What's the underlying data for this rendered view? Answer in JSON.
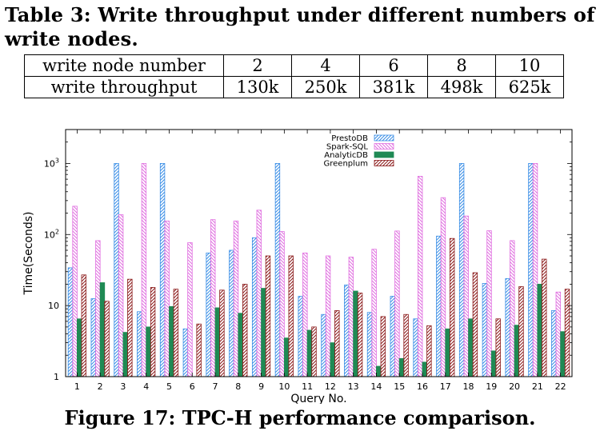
{
  "table": {
    "caption": "Table 3: Write throughput under different numbers of write nodes.",
    "row1": {
      "label": "write node number",
      "values": [
        "2",
        "4",
        "6",
        "8",
        "10"
      ]
    },
    "row2": {
      "label": "write throughput",
      "values": [
        "130k",
        "250k",
        "381k",
        "498k",
        "625k"
      ]
    }
  },
  "figure": {
    "caption": "Figure 17: TPC-H performance comparison."
  },
  "chart_data": {
    "type": "bar",
    "title": "",
    "xlabel": "Query No.",
    "ylabel": "Time(Seconds)",
    "yscale": "log",
    "ylim": [
      1,
      3000
    ],
    "yticks": [
      {
        "value": 1,
        "label": "1"
      },
      {
        "value": 10,
        "label": "10"
      },
      {
        "value": 100,
        "label": "10^2"
      },
      {
        "value": 1000,
        "label": "10^3"
      }
    ],
    "grid": false,
    "legend": "top-center",
    "categories": [
      "1",
      "2",
      "3",
      "4",
      "5",
      "6",
      "7",
      "8",
      "9",
      "10",
      "11",
      "12",
      "13",
      "14",
      "15",
      "16",
      "17",
      "18",
      "19",
      "20",
      "21",
      "22"
    ],
    "series": [
      {
        "name": "PrestoDB",
        "color": "#3a8ee6",
        "values": [
          34,
          12.5,
          1000,
          8.2,
          1000,
          4.7,
          55,
          60,
          90,
          1000,
          13.5,
          7.5,
          19.5,
          8,
          13.5,
          6.5,
          95,
          1000,
          20.5,
          24,
          1000,
          8.5
        ]
      },
      {
        "name": "Spark-SQL",
        "color": "#e070e0",
        "values": [
          250,
          82,
          190,
          1000,
          155,
          77,
          162,
          155,
          220,
          110,
          55,
          50,
          48,
          62,
          112,
          660,
          330,
          182,
          113,
          82,
          1000,
          15.5
        ]
      },
      {
        "name": "AnalyticDB",
        "color": "#1f8a54",
        "values": [
          6.5,
          21,
          4.2,
          5,
          9.7,
          1,
          9.3,
          7.8,
          17.5,
          3.5,
          4.5,
          3,
          16,
          1.4,
          1.8,
          1.6,
          4.7,
          6.5,
          2.3,
          5.3,
          20,
          4.3
        ]
      },
      {
        "name": "Greenplum",
        "color": "#8b1a1a",
        "values": [
          27,
          11.5,
          23.5,
          18,
          17,
          5.5,
          16.5,
          20,
          50,
          50,
          5,
          8.5,
          15,
          7,
          7.5,
          5.2,
          88,
          29,
          6.5,
          18.5,
          45,
          17
        ]
      }
    ]
  }
}
